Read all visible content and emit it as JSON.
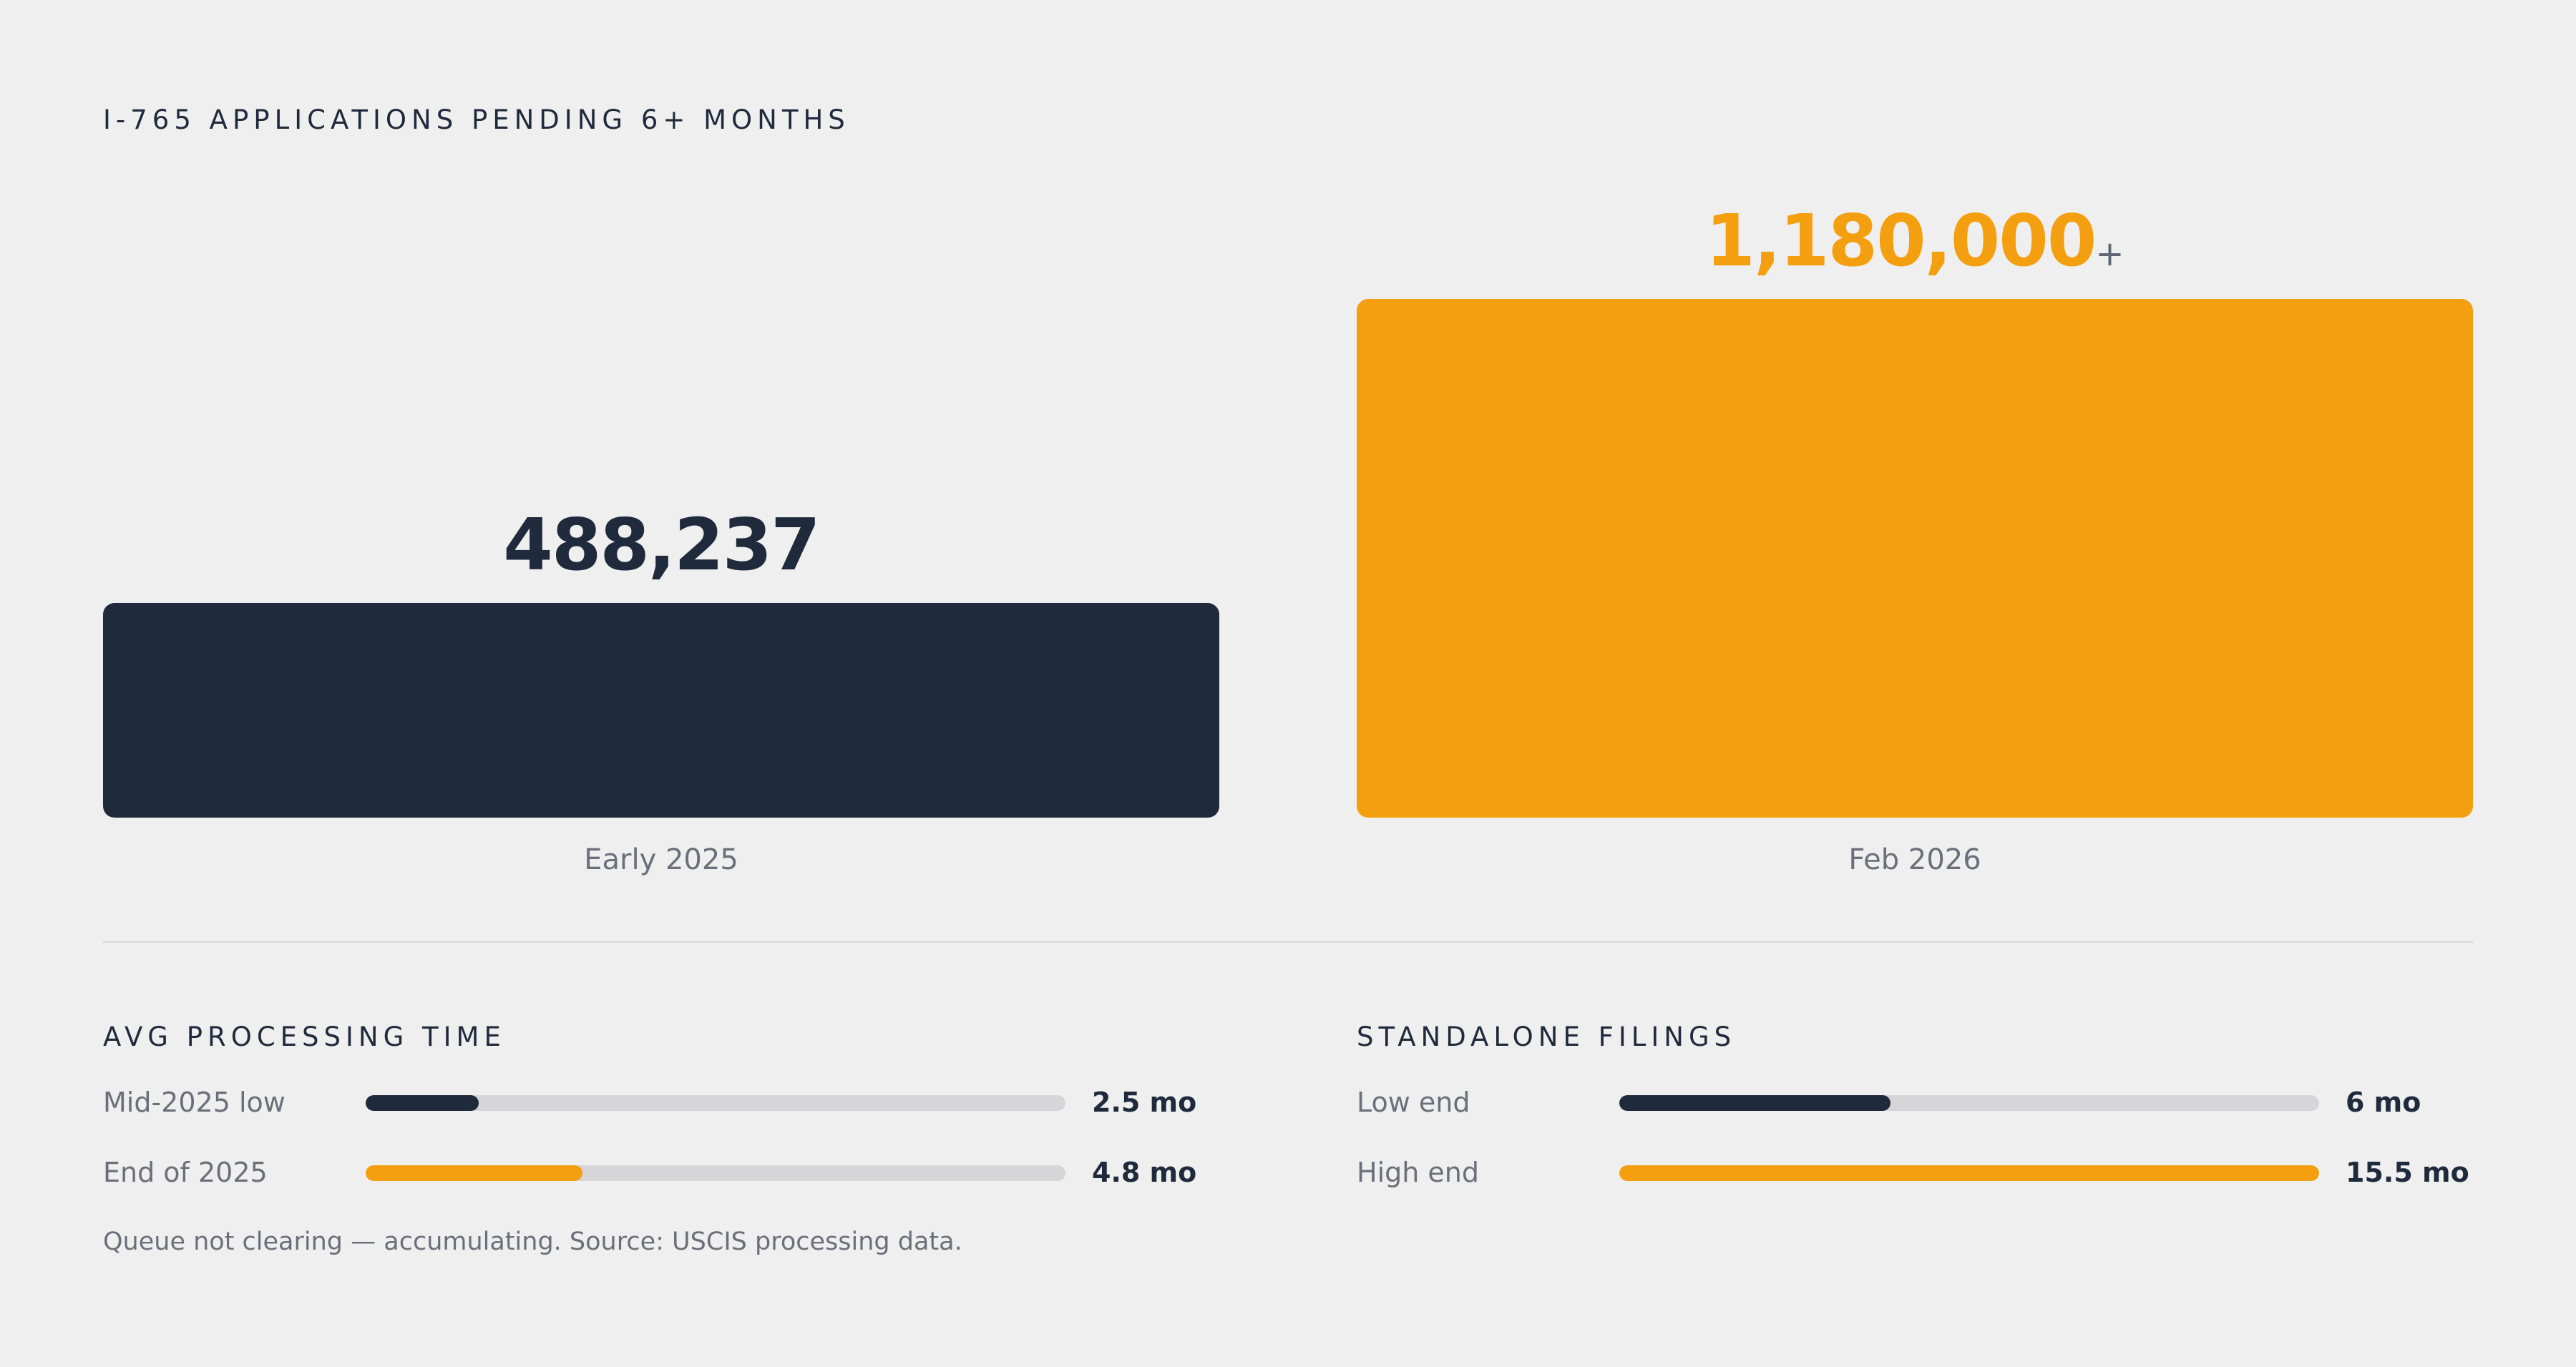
{
  "chart_data": [
    {
      "type": "bar",
      "title": "I-765 APPLICATIONS PENDING 6+ MONTHS",
      "categories": [
        "Early 2025",
        "Feb 2026"
      ],
      "values": [
        488237,
        1180000
      ],
      "value_labels": [
        "488,237",
        "1,180,000"
      ],
      "value_suffixes": [
        "",
        "+"
      ],
      "colors": [
        "#1f2a3c",
        "#f39f0f"
      ],
      "ylim": [
        0,
        1180000
      ],
      "grid": false
    },
    {
      "type": "bar",
      "orientation": "horizontal",
      "title": "AVG PROCESSING TIME",
      "categories": [
        "Mid-2025 low",
        "End of 2025"
      ],
      "values": [
        2.5,
        4.8
      ],
      "value_labels": [
        "2.5 mo",
        "4.8 mo"
      ],
      "colors": [
        "#1f2a3c",
        "#f39f0f"
      ],
      "xlim": [
        0,
        15.5
      ]
    },
    {
      "type": "bar",
      "orientation": "horizontal",
      "title": "STANDALONE FILINGS",
      "categories": [
        "Low end",
        "High end"
      ],
      "values": [
        6,
        15.5
      ],
      "value_labels": [
        "6 mo",
        "15.5 mo"
      ],
      "colors": [
        "#1f2a3c",
        "#f39f0f"
      ],
      "xlim": [
        0,
        15.5
      ]
    }
  ],
  "footnote": "Queue not clearing — accumulating. Source: USCIS processing data.",
  "colors": {
    "background": "#f0efef",
    "dark": "#1f2a3c",
    "accent": "#f39f0f",
    "track": "#d6d6d9"
  }
}
